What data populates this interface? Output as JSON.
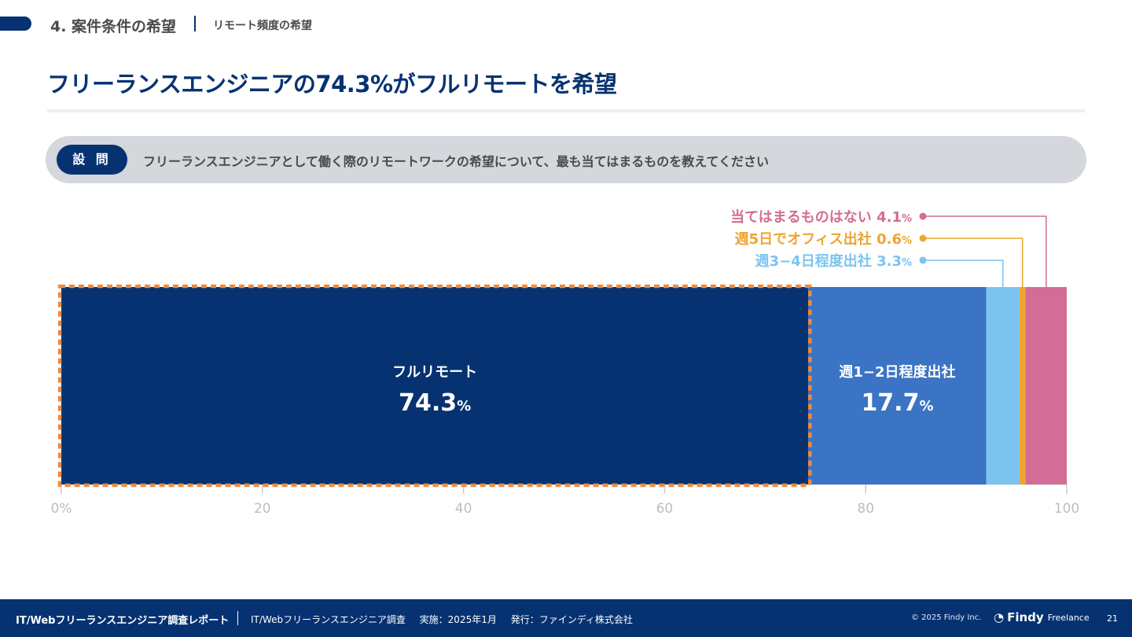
{
  "header": {
    "section": "4. 案件条件の希望",
    "subsection": "リモート頻度の希望"
  },
  "title": "フリーランスエンジニアの74.3%がフルリモートを希望",
  "question": {
    "tag": "設 問",
    "text": "フリーランスエンジニアとして働く際のリモートワークの希望について、最も当てはまるものを教えてください"
  },
  "chart_data": {
    "type": "bar",
    "orientation": "horizontal-stacked",
    "xlim": [
      0,
      100
    ],
    "x_ticks": [
      "0%",
      "20",
      "40",
      "60",
      "80",
      "100"
    ],
    "unit": "%",
    "series": [
      {
        "name": "フルリモート",
        "value": 74.3,
        "label": "74.3",
        "color": "#063271",
        "highlight": true
      },
      {
        "name": "週1−2日程度出社",
        "value": 17.7,
        "label": "17.7",
        "color": "#3b74c4"
      },
      {
        "name": "週3−4日程度出社",
        "value": 3.3,
        "label": "3.3",
        "color": "#7bc4ef"
      },
      {
        "name": "週5日でオフィス出社",
        "value": 0.6,
        "label": "0.6",
        "color": "#f0a430"
      },
      {
        "name": "当てはまるものはない",
        "value": 4.1,
        "label": "4.1",
        "color": "#d36d95"
      }
    ],
    "highlight_color": "#ef8a3c"
  },
  "footer": {
    "report": "IT/Webフリーランスエンジニア調査レポート",
    "survey": "IT/Webフリーランスエンジニア調査",
    "date": "実施：2025年1月",
    "publisher": "発行：ファインディ株式会社",
    "copyright": "© 2025 Findy Inc.",
    "logo_name": "Findy",
    "logo_sub": "Freelance",
    "page": "21"
  }
}
